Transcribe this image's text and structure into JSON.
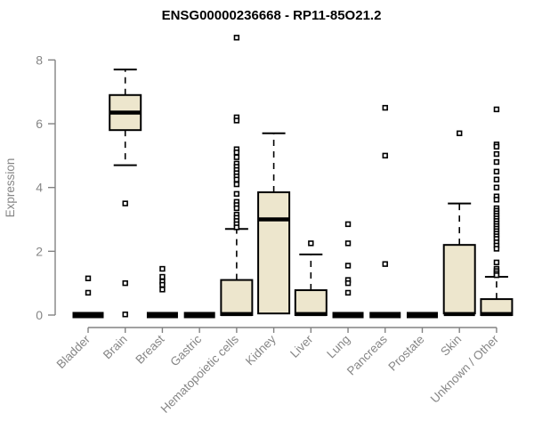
{
  "chart_data": {
    "type": "boxplot",
    "title": "ENSG00000236668 - RP11-85O21.2",
    "xlabel": "",
    "ylabel": "Expression",
    "ylim": [
      0,
      8.8
    ],
    "yticks": [
      0,
      2,
      4,
      6,
      8
    ],
    "grid": "off",
    "legend": "none",
    "colors": {
      "box_fill": "#EDE6CD",
      "box_stroke": "#000000",
      "axis": "#828282",
      "label_text": "#868686",
      "title_text": "#000000"
    },
    "categories": [
      "Bladder",
      "Brain",
      "Breast",
      "Gastric",
      "Hematopoietic cells",
      "Kidney",
      "Liver",
      "Lung",
      "Pancreas",
      "Prostate",
      "Skin",
      "Unknown / Other"
    ],
    "groups": [
      {
        "label": "Bladder",
        "q1": 0,
        "median": 0,
        "q3": 0,
        "whisker_low": 0,
        "whisker_high": 0,
        "outliers": [
          1.15,
          0.7
        ]
      },
      {
        "label": "Brain",
        "q1": 5.8,
        "median": 6.35,
        "q3": 6.9,
        "whisker_low": 4.7,
        "whisker_high": 7.7,
        "outliers": [
          3.5,
          1.0,
          0.02
        ]
      },
      {
        "label": "Breast",
        "q1": 0,
        "median": 0,
        "q3": 0,
        "whisker_low": 0,
        "whisker_high": 0,
        "outliers": [
          1.45,
          1.2,
          1.05,
          0.95,
          0.8
        ]
      },
      {
        "label": "Gastric",
        "q1": 0,
        "median": 0,
        "q3": 0,
        "whisker_low": 0,
        "whisker_high": 0,
        "outliers": []
      },
      {
        "label": "Hematopoietic cells",
        "q1": 0,
        "median": 0.03,
        "q3": 1.1,
        "whisker_low": 0,
        "whisker_high": 2.7,
        "outliers": [
          8.7,
          6.2,
          6.1,
          5.2,
          5.1,
          4.95,
          4.75,
          4.65,
          4.55,
          4.45,
          4.35,
          4.25,
          4.1,
          3.8,
          3.55,
          3.45,
          3.35,
          3.15,
          3.05,
          2.95,
          2.85,
          2.75
        ]
      },
      {
        "label": "Kidney",
        "q1": 0.05,
        "median": 3.0,
        "q3": 3.85,
        "whisker_low": 0.05,
        "whisker_high": 5.7,
        "outliers": []
      },
      {
        "label": "Liver",
        "q1": 0,
        "median": 0.03,
        "q3": 0.78,
        "whisker_low": 0,
        "whisker_high": 1.9,
        "outliers": [
          2.25
        ]
      },
      {
        "label": "Lung",
        "q1": 0,
        "median": 0,
        "q3": 0,
        "whisker_low": 0,
        "whisker_high": 0,
        "outliers": [
          2.85,
          2.25,
          1.55,
          1.1,
          1.0,
          0.7
        ]
      },
      {
        "label": "Pancreas",
        "q1": 0,
        "median": 0,
        "q3": 0,
        "whisker_low": 0,
        "whisker_high": 0,
        "outliers": [
          6.5,
          5.0,
          1.6
        ]
      },
      {
        "label": "Prostate",
        "q1": 0,
        "median": 0,
        "q3": 0,
        "whisker_low": 0,
        "whisker_high": 0,
        "outliers": []
      },
      {
        "label": "Skin",
        "q1": 0.05,
        "median": 0.03,
        "q3": 2.2,
        "whisker_low": 0.05,
        "whisker_high": 3.5,
        "outliers": [
          5.7
        ]
      },
      {
        "label": "Unknown / Other",
        "q1": 0,
        "median": 0.03,
        "q3": 0.5,
        "whisker_low": 0,
        "whisker_high": 1.2,
        "outliers": [
          6.45,
          5.35,
          5.28,
          5.05,
          4.8,
          4.5,
          4.25,
          4.0,
          3.72,
          3.62,
          3.35,
          3.27,
          3.19,
          3.11,
          3.03,
          2.95,
          2.87,
          2.79,
          2.71,
          2.63,
          2.55,
          2.47,
          2.39,
          2.28,
          2.18,
          2.08,
          1.65,
          1.45,
          1.38,
          1.31,
          1.25
        ]
      }
    ]
  }
}
